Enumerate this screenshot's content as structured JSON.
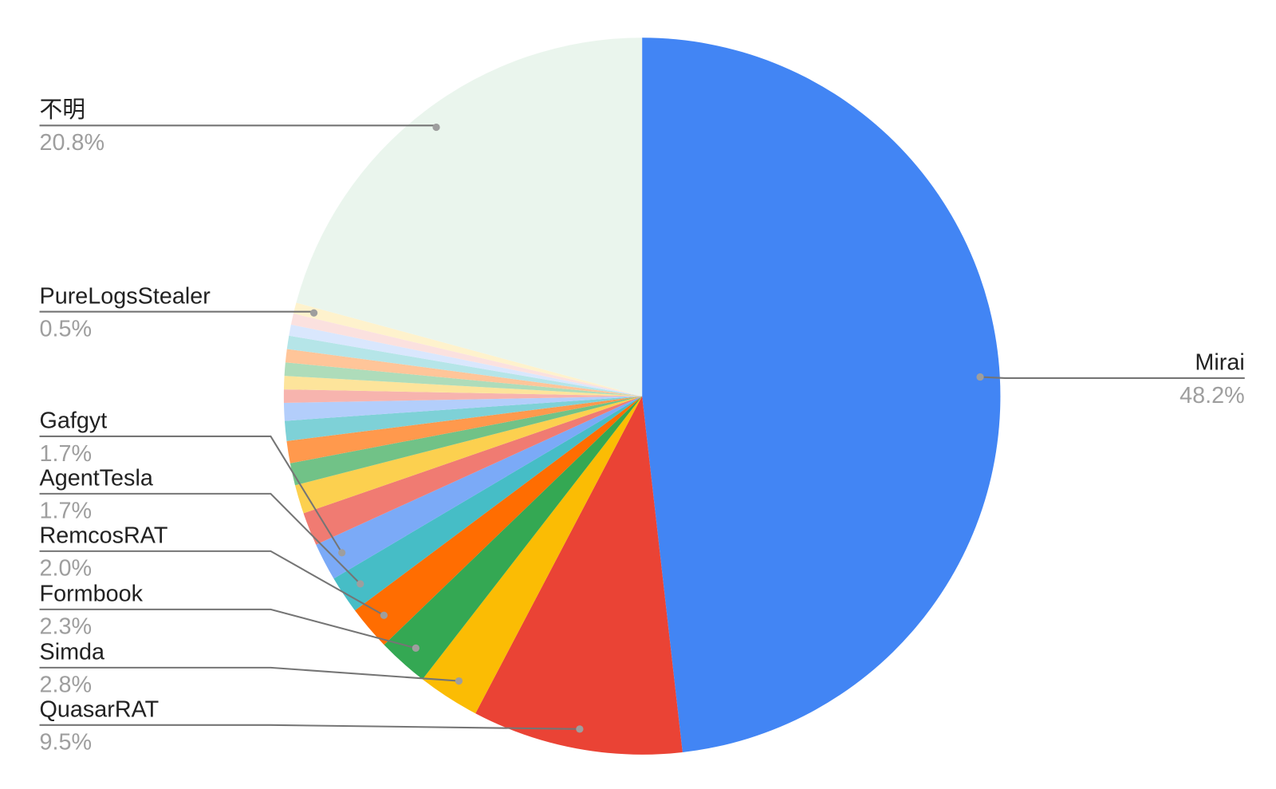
{
  "chart_data": {
    "type": "pie",
    "categories": [
      "Mirai",
      "QuasarRAT",
      "Simda",
      "Formbook",
      "RemcosRAT",
      "AgentTesla",
      "Gafgyt",
      null,
      null,
      null,
      null,
      null,
      null,
      null,
      null,
      null,
      null,
      null,
      null,
      null,
      "PureLogsStealer",
      "不明"
    ],
    "values": [
      48.2,
      9.5,
      2.8,
      2.3,
      2.0,
      1.7,
      1.7,
      1.5,
      1.3,
      1.0,
      1.0,
      0.9,
      0.8,
      0.6,
      0.6,
      0.6,
      0.6,
      0.6,
      0.5,
      0.5,
      0.5,
      20.8
    ],
    "value_labels": [
      "48.2%",
      "9.5%",
      "2.8%",
      "2.3%",
      "2.0%",
      "1.7%",
      "1.7%",
      null,
      null,
      null,
      null,
      null,
      null,
      null,
      null,
      null,
      null,
      null,
      null,
      null,
      "0.5%",
      "20.8%"
    ],
    "colors": [
      "#4285f4",
      "#ea4335",
      "#fbbc04",
      "#34a853",
      "#ff6d01",
      "#46bdc6",
      "#7baaf7",
      "#f07b72",
      "#fcd04f",
      "#71c287",
      "#ff994d",
      "#7ed1d7",
      "#b3cefb",
      "#f7b4ae",
      "#fde49b",
      "#aedcba",
      "#ffc599",
      "#b5e5e8",
      "#d9e7fd",
      "#fbe1df",
      "#fef2cd",
      "#eaf5ed"
    ]
  }
}
